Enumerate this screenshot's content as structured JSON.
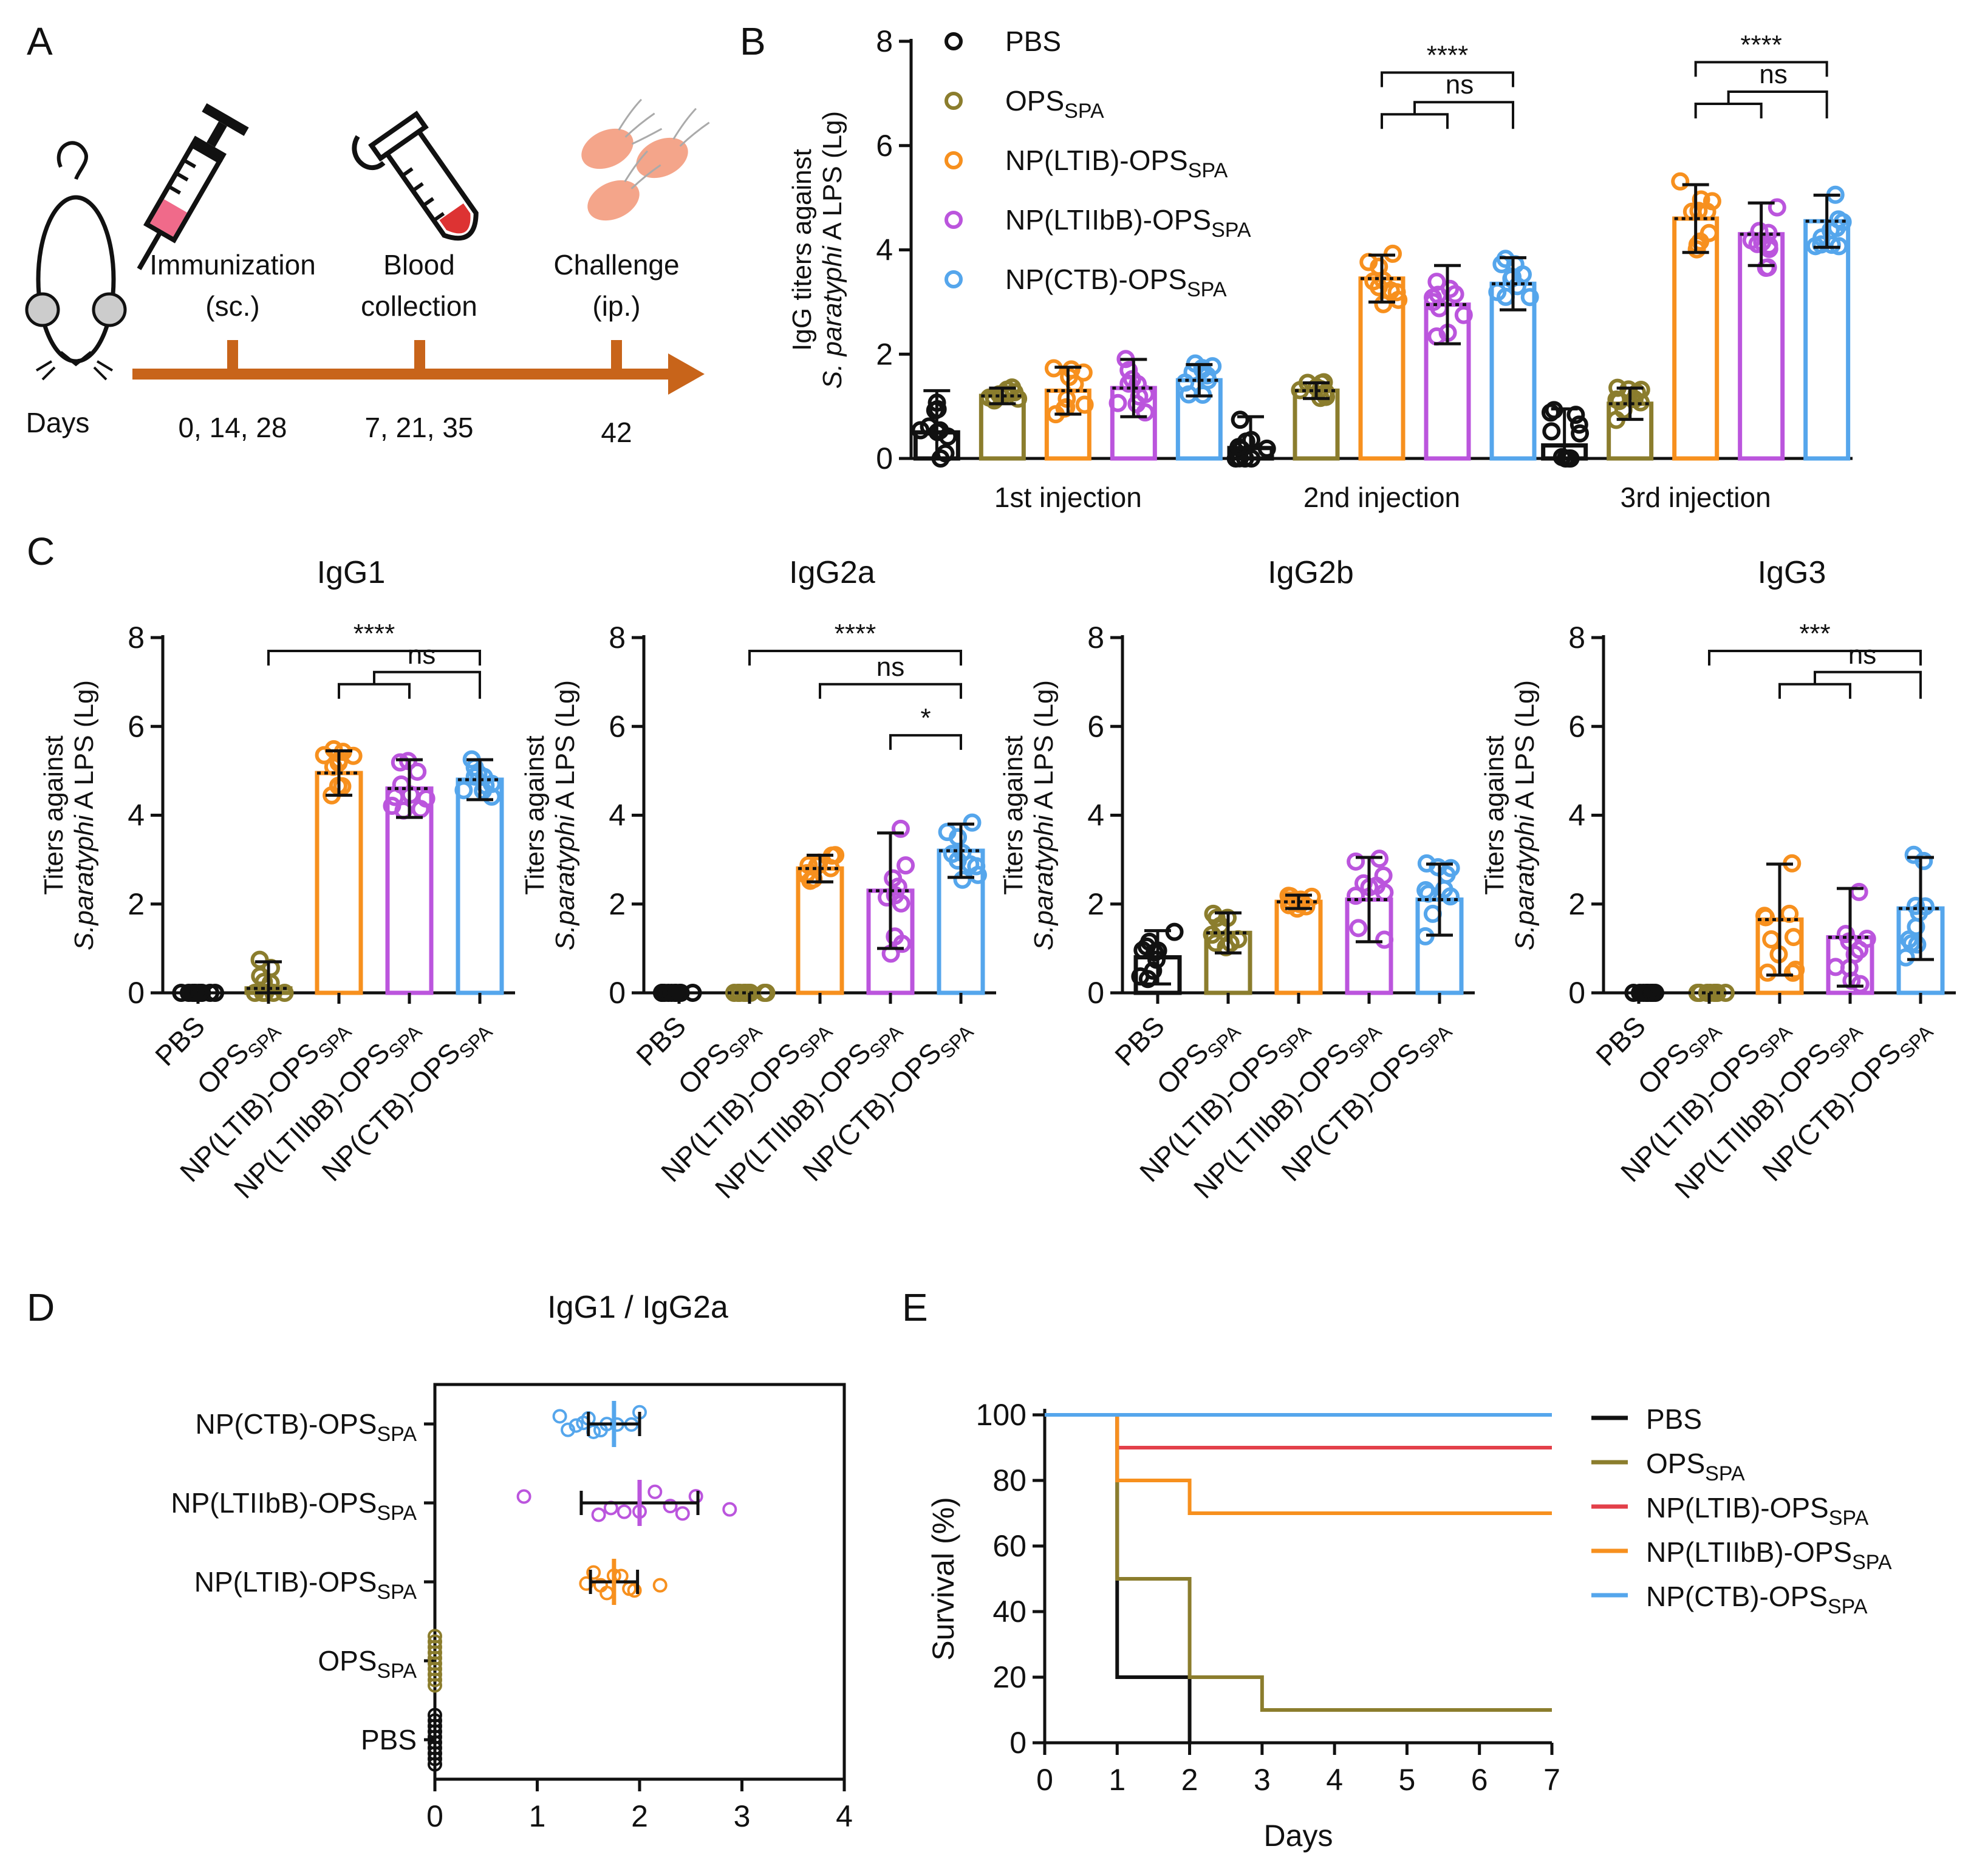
{
  "palette": {
    "PBS": "#111111",
    "OPS": "#8b7d2d",
    "LTIB": "#f7901e",
    "LTIIbB": "#bb55dd",
    "CTB": "#55a6ec",
    "LTIB_survival": "#e3404a"
  },
  "groups": [
    {
      "key": "PBS",
      "main": "PBS",
      "sub": ""
    },
    {
      "key": "OPS",
      "main": "OPS",
      "sub": "SPA"
    },
    {
      "key": "LTIB",
      "main": "NP(LTIB)-OPS",
      "sub": "SPA"
    },
    {
      "key": "LTIIbB",
      "main": "NP(LTIIbB)-OPS",
      "sub": "SPA"
    },
    {
      "key": "CTB",
      "main": "NP(CTB)-OPS",
      "sub": "SPA"
    }
  ],
  "panelA": {
    "letter": "A",
    "steps": [
      {
        "label1": "Immunization",
        "label2": "(sc.)",
        "days": "0, 14, 28",
        "icon": "syringe-icon"
      },
      {
        "label1": "Blood",
        "label2": "collection",
        "days": "7, 21, 35",
        "icon": "blood-tube-icon"
      },
      {
        "label1": "Challenge",
        "label2": "(ip.)",
        "days": "42",
        "icon": "bacteria-icon"
      }
    ],
    "days_label": "Days",
    "mouse_icon": "mouse-icon"
  },
  "chart_data": [
    {
      "id": "B",
      "letter": "B",
      "type": "bar",
      "ylabel_line1": "IgG titers against",
      "ylabel_line2_italic": "S. paratyphi",
      "ylabel_line2_rest": " A LPS (Lg)",
      "ylim": [
        0,
        8
      ],
      "yticks": [
        "0",
        "2",
        "4",
        "6",
        "8"
      ],
      "categories": [
        "1st injection",
        "2nd injection",
        "3rd injection"
      ],
      "series": [
        {
          "name": "PBS",
          "values": [
            0.5,
            0.2,
            0.25
          ],
          "errors": [
            0.8,
            0.6,
            0.7
          ]
        },
        {
          "name": "OPS",
          "values": [
            1.2,
            1.3,
            1.05
          ],
          "errors": [
            0.15,
            0.15,
            0.3
          ]
        },
        {
          "name": "NP(LTIB)-OPS",
          "values": [
            1.3,
            3.45,
            4.6
          ],
          "errors": [
            0.45,
            0.45,
            0.65
          ]
        },
        {
          "name": "NP(LTIIbB)-OPS",
          "values": [
            1.35,
            2.95,
            4.3
          ],
          "errors": [
            0.55,
            0.75,
            0.6
          ]
        },
        {
          "name": "NP(CTB)-OPS",
          "values": [
            1.5,
            3.35,
            4.55
          ],
          "errors": [
            0.3,
            0.5,
            0.5
          ]
        }
      ],
      "legend_position": "top-left",
      "significance": [
        {
          "cat": 1,
          "text": "****",
          "a": 2,
          "b": 4,
          "y": 7.4
        },
        {
          "cat": 1,
          "text": "ns",
          "a": 2,
          "b": 4,
          "y": 6.6,
          "nested": true,
          "c": 3
        },
        {
          "cat": 2,
          "text": "****",
          "a": 2,
          "b": 4,
          "y": 7.6
        },
        {
          "cat": 2,
          "text": "ns",
          "a": 2,
          "b": 4,
          "y": 6.8,
          "nested": true,
          "c": 3
        }
      ]
    },
    {
      "id": "C1",
      "letter": "C",
      "type": "bar",
      "title": "IgG1",
      "ylabel_line1": "Titers against",
      "ylabel_line2_italic": "S.paratyphi",
      "ylabel_line2_rest": " A LPS (Lg)",
      "ylim": [
        0,
        8
      ],
      "yticks": [
        "0",
        "2",
        "4",
        "6",
        "8"
      ],
      "values": [
        0.0,
        0.1,
        4.95,
        4.6,
        4.8
      ],
      "errors": [
        0.0,
        0.6,
        0.5,
        0.65,
        0.45
      ],
      "significance": [
        {
          "text": "****",
          "a": 1,
          "b": 4,
          "y": 7.7
        },
        {
          "text": "ns",
          "a": 2,
          "b": 4,
          "y": 6.95,
          "nested": true,
          "c": 3
        }
      ]
    },
    {
      "id": "C2",
      "type": "bar",
      "title": "IgG2a",
      "ylabel_line1": "Titers against",
      "ylabel_line2_italic": "S.paratyphi",
      "ylabel_line2_rest": " A LPS (Lg)",
      "ylim": [
        0,
        8
      ],
      "yticks": [
        "0",
        "2",
        "4",
        "6",
        "8"
      ],
      "values": [
        0.0,
        0.0,
        2.8,
        2.3,
        3.2
      ],
      "errors": [
        0.0,
        0.0,
        0.3,
        1.3,
        0.6
      ],
      "significance": [
        {
          "text": "****",
          "a": 1,
          "b": 4,
          "y": 7.7
        },
        {
          "text": "ns",
          "a": 2,
          "b": 4,
          "y": 6.95
        },
        {
          "text": "*",
          "a": 3,
          "b": 4,
          "y": 5.8
        }
      ]
    },
    {
      "id": "C3",
      "type": "bar",
      "title": "IgG2b",
      "ylabel_line1": "Titers against",
      "ylabel_line2_italic": "S.paratyphi",
      "ylabel_line2_rest": " A LPS (Lg)",
      "ylim": [
        0,
        8
      ],
      "yticks": [
        "0",
        "2",
        "4",
        "6",
        "8"
      ],
      "values": [
        0.8,
        1.35,
        2.05,
        2.1,
        2.1
      ],
      "errors": [
        0.6,
        0.45,
        0.15,
        0.95,
        0.8
      ],
      "significance": []
    },
    {
      "id": "C4",
      "type": "bar",
      "title": "IgG3",
      "ylabel_line1": "Titers against",
      "ylabel_line2_italic": "S.paratyphi",
      "ylabel_line2_rest": " A LPS (Lg)",
      "ylim": [
        0,
        8
      ],
      "yticks": [
        "0",
        "2",
        "4",
        "6",
        "8"
      ],
      "values": [
        0.0,
        0.0,
        1.65,
        1.25,
        1.9
      ],
      "errors": [
        0.0,
        0.0,
        1.25,
        1.1,
        1.15
      ],
      "significance": [
        {
          "text": "***",
          "a": 1,
          "b": 4,
          "y": 7.7
        },
        {
          "text": "ns",
          "a": 2,
          "b": 4,
          "y": 6.95,
          "nested": true,
          "c": 3
        }
      ]
    },
    {
      "id": "D",
      "letter": "D",
      "type": "scatter",
      "title": "IgG1 / IgG2a",
      "xlim": [
        0,
        4
      ],
      "xticks": [
        "0",
        "1",
        "2",
        "3",
        "4"
      ],
      "rows": [
        {
          "key": "CTB",
          "mean": 1.75,
          "sd": 0.25,
          "points": [
            1.22,
            1.3,
            1.38,
            1.45,
            1.5,
            1.55,
            1.62,
            1.68,
            1.78,
            1.92,
            2.0
          ]
        },
        {
          "key": "LTIIbB",
          "mean": 2.0,
          "sd": 0.57,
          "points": [
            0.87,
            1.6,
            1.72,
            1.85,
            2.0,
            2.15,
            2.3,
            2.42,
            2.55,
            2.88
          ]
        },
        {
          "key": "LTIB",
          "mean": 1.75,
          "sd": 0.23,
          "points": [
            1.48,
            1.55,
            1.62,
            1.68,
            1.75,
            1.82,
            1.9,
            1.95,
            2.2
          ]
        },
        {
          "key": "OPS",
          "mean": 0.0,
          "sd": 0.0,
          "points": [
            0,
            0,
            0,
            0,
            0,
            0,
            0,
            0,
            0,
            0
          ]
        },
        {
          "key": "PBS",
          "mean": 0.0,
          "sd": 0.0,
          "points": [
            0,
            0,
            0,
            0,
            0,
            0,
            0,
            0,
            0,
            0
          ]
        }
      ]
    },
    {
      "id": "E",
      "letter": "E",
      "type": "line",
      "xlabel": "Days",
      "ylabel": "Survival (%)",
      "xlim": [
        0,
        7
      ],
      "ylim": [
        0,
        100
      ],
      "xticks": [
        "0",
        "1",
        "2",
        "3",
        "4",
        "5",
        "6",
        "7"
      ],
      "yticks": [
        "0",
        "20",
        "40",
        "60",
        "80",
        "100"
      ],
      "series": [
        {
          "key": "PBS",
          "name": "PBS",
          "steps": [
            [
              0,
              100
            ],
            [
              1,
              20
            ],
            [
              2,
              0
            ]
          ]
        },
        {
          "key": "OPS",
          "name": "OPS",
          "steps": [
            [
              0,
              100
            ],
            [
              1,
              50
            ],
            [
              2,
              20
            ],
            [
              3,
              10
            ],
            [
              7,
              10
            ]
          ]
        },
        {
          "key": "LTIB_survival",
          "name": "NP(LTIB)-OPS",
          "steps": [
            [
              0,
              100
            ],
            [
              1,
              90
            ],
            [
              7,
              90
            ]
          ]
        },
        {
          "key": "LTIB",
          "name": "NP(LTIIbB)-OPS",
          "steps": [
            [
              0,
              100
            ],
            [
              1,
              80
            ],
            [
              2,
              70
            ],
            [
              7,
              70
            ]
          ]
        },
        {
          "key": "CTB",
          "name": "NP(CTB)-OPS",
          "steps": [
            [
              0,
              100
            ],
            [
              7,
              100
            ]
          ]
        }
      ],
      "legend_position": "right"
    }
  ]
}
